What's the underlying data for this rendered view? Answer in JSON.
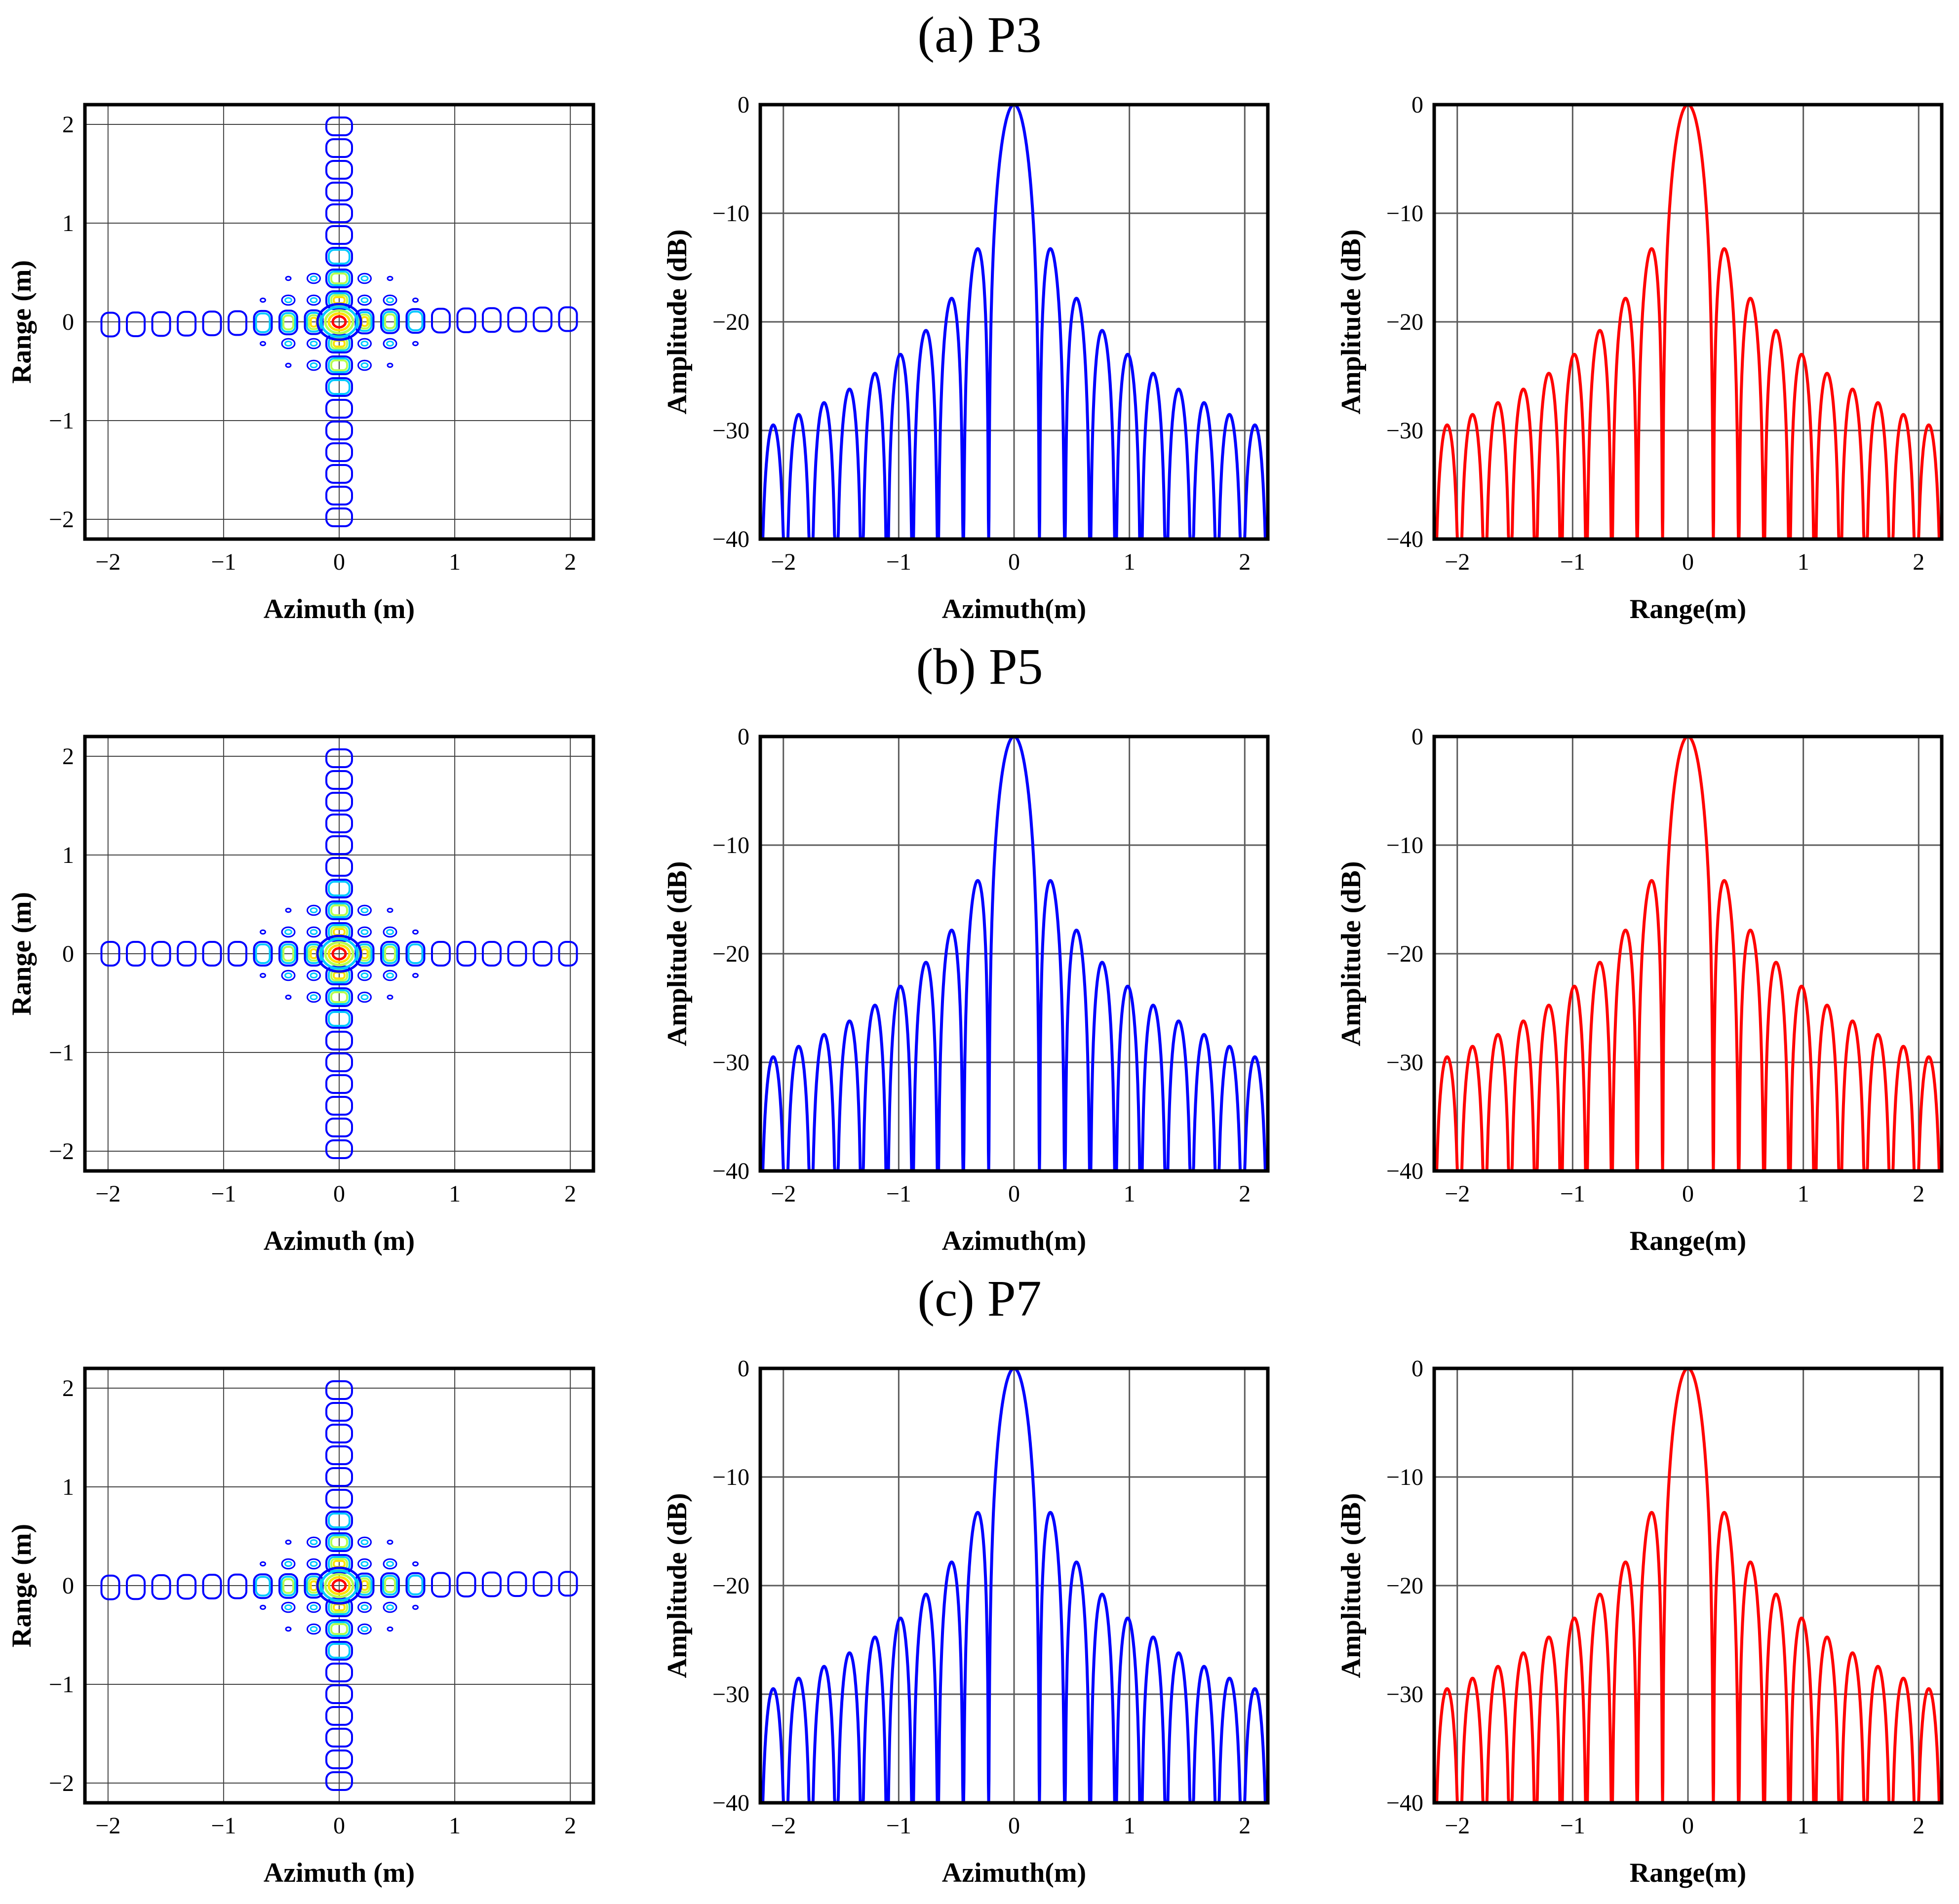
{
  "figure": {
    "rows": [
      {
        "title": "(a) P3",
        "contour": {
          "xlabel": "Azimuth (m)",
          "ylabel": "Range (m)",
          "xticks": [
            "−2",
            "−1",
            "0",
            "1",
            "2"
          ],
          "yticks": [
            "2",
            "1",
            "0",
            "−1",
            "−2"
          ]
        },
        "azimuth_profile": {
          "xlabel": "Azimuth(m)",
          "ylabel": "Amplitude (dB)",
          "xticks": [
            "−2",
            "−1",
            "0",
            "1",
            "2"
          ],
          "yticks": [
            "0",
            "−10",
            "−20",
            "−30",
            "−40"
          ]
        },
        "range_profile": {
          "xlabel": "Range(m)",
          "ylabel": "Amplitude (dB)",
          "xticks": [
            "−2",
            "−1",
            "0",
            "1",
            "2"
          ],
          "yticks": [
            "0",
            "−10",
            "−20",
            "−30",
            "−40"
          ]
        }
      },
      {
        "title": "(b) P5",
        "contour": {
          "xlabel": "Azimuth (m)",
          "ylabel": "Range (m)",
          "xticks": [
            "−2",
            "−1",
            "0",
            "1",
            "2"
          ],
          "yticks": [
            "2",
            "1",
            "0",
            "−1",
            "−2"
          ]
        },
        "azimuth_profile": {
          "xlabel": "Azimuth(m)",
          "ylabel": "Amplitude (dB)",
          "xticks": [
            "−2",
            "−1",
            "0",
            "1",
            "2"
          ],
          "yticks": [
            "0",
            "−10",
            "−20",
            "−30",
            "−40"
          ]
        },
        "range_profile": {
          "xlabel": "Range(m)",
          "ylabel": "Amplitude (dB)",
          "xticks": [
            "−2",
            "−1",
            "0",
            "1",
            "2"
          ],
          "yticks": [
            "0",
            "−10",
            "−20",
            "−30",
            "−40"
          ]
        }
      },
      {
        "title": "(c) P7",
        "contour": {
          "xlabel": "Azimuth (m)",
          "ylabel": "Range (m)",
          "xticks": [
            "−2",
            "−1",
            "0",
            "1",
            "2"
          ],
          "yticks": [
            "2",
            "1",
            "0",
            "−1",
            "−2"
          ]
        },
        "azimuth_profile": {
          "xlabel": "Azimuth(m)",
          "ylabel": "Amplitude (dB)",
          "xticks": [
            "−2",
            "−1",
            "0",
            "1",
            "2"
          ],
          "yticks": [
            "0",
            "−10",
            "−20",
            "−30",
            "−40"
          ]
        },
        "range_profile": {
          "xlabel": "Range(m)",
          "ylabel": "Amplitude (dB)",
          "xticks": [
            "−2",
            "−1",
            "0",
            "1",
            "2"
          ],
          "yticks": [
            "0",
            "−10",
            "−20",
            "−30",
            "−40"
          ]
        }
      }
    ]
  },
  "chart_data": [
    {
      "type": "heatmap",
      "title": "(a) P3",
      "kind": "contour",
      "xlabel": "Azimuth (m)",
      "ylabel": "Range (m)",
      "xlim": [
        -2.2,
        2.2
      ],
      "ylim": [
        -2.2,
        2.2
      ],
      "x_ticks": [
        -2,
        -1,
        0,
        1,
        2
      ],
      "y_ticks": [
        -2,
        -1,
        0,
        1,
        2
      ],
      "peak": [
        0,
        0
      ],
      "grid": true,
      "contour_colors": [
        "#0000ff",
        "#00c8ff",
        "#b4ff50",
        "#ffe000",
        "#ff0000"
      ]
    },
    {
      "type": "line",
      "title": "(a) P3",
      "xlabel": "Azimuth(m)",
      "ylabel": "Amplitude (dB)",
      "xlim": [
        -2.2,
        2.2
      ],
      "ylim": [
        -40,
        0
      ],
      "x_ticks": [
        -2,
        -1,
        0,
        1,
        2
      ],
      "y_ticks": [
        0,
        -10,
        -20,
        -30,
        -40
      ],
      "mainlobe_half_width_m": 0.22,
      "sidelobe_spacing_m": 0.22,
      "sidelobe_peaks_db": [
        -13.3,
        -17.9,
        -21.0,
        -23.3,
        -25.1,
        -26.6,
        -27.8,
        -28.8,
        -29.7
      ],
      "color": "#0000ff",
      "grid": true
    },
    {
      "type": "line",
      "title": "(a) P3",
      "xlabel": "Range(m)",
      "ylabel": "Amplitude (dB)",
      "xlim": [
        -2.2,
        2.2
      ],
      "ylim": [
        -40,
        0
      ],
      "x_ticks": [
        -2,
        -1,
        0,
        1,
        2
      ],
      "y_ticks": [
        0,
        -10,
        -20,
        -30,
        -40
      ],
      "mainlobe_half_width_m": 0.22,
      "sidelobe_spacing_m": 0.22,
      "sidelobe_peaks_db": [
        -13.3,
        -17.9,
        -21.0,
        -23.3,
        -25.1,
        -26.6,
        -27.8,
        -28.8,
        -29.7
      ],
      "color": "#ff0000",
      "grid": true
    },
    {
      "type": "heatmap",
      "title": "(b) P5",
      "kind": "contour",
      "xlabel": "Azimuth (m)",
      "ylabel": "Range (m)",
      "xlim": [
        -2.2,
        2.2
      ],
      "ylim": [
        -2.2,
        2.2
      ],
      "x_ticks": [
        -2,
        -1,
        0,
        1,
        2
      ],
      "y_ticks": [
        -2,
        -1,
        0,
        1,
        2
      ],
      "peak": [
        0,
        0
      ],
      "grid": true,
      "contour_colors": [
        "#0000ff",
        "#00c8ff",
        "#b4ff50",
        "#ffe000",
        "#ff0000"
      ]
    },
    {
      "type": "line",
      "title": "(b) P5",
      "xlabel": "Azimuth(m)",
      "ylabel": "Amplitude (dB)",
      "xlim": [
        -2.2,
        2.2
      ],
      "ylim": [
        -40,
        0
      ],
      "x_ticks": [
        -2,
        -1,
        0,
        1,
        2
      ],
      "y_ticks": [
        0,
        -10,
        -20,
        -30,
        -40
      ],
      "mainlobe_half_width_m": 0.22,
      "sidelobe_spacing_m": 0.22,
      "sidelobe_peaks_db": [
        -13.3,
        -17.9,
        -21.0,
        -23.3,
        -25.1,
        -26.6,
        -27.8,
        -28.8,
        -29.7
      ],
      "color": "#0000ff",
      "grid": true
    },
    {
      "type": "line",
      "title": "(b) P5",
      "xlabel": "Range(m)",
      "ylabel": "Amplitude (dB)",
      "xlim": [
        -2.2,
        2.2
      ],
      "ylim": [
        -40,
        0
      ],
      "x_ticks": [
        -2,
        -1,
        0,
        1,
        2
      ],
      "y_ticks": [
        0,
        -10,
        -20,
        -30,
        -40
      ],
      "mainlobe_half_width_m": 0.22,
      "sidelobe_spacing_m": 0.22,
      "sidelobe_peaks_db": [
        -13.3,
        -17.9,
        -21.0,
        -23.3,
        -25.1,
        -26.6,
        -27.8,
        -28.8,
        -29.7
      ],
      "color": "#ff0000",
      "grid": true
    },
    {
      "type": "heatmap",
      "title": "(c) P7",
      "kind": "contour",
      "xlabel": "Azimuth (m)",
      "ylabel": "Range (m)",
      "xlim": [
        -2.2,
        2.2
      ],
      "ylim": [
        -2.2,
        2.2
      ],
      "x_ticks": [
        -2,
        -1,
        0,
        1,
        2
      ],
      "y_ticks": [
        -2,
        -1,
        0,
        1,
        2
      ],
      "peak": [
        0,
        0
      ],
      "grid": true,
      "contour_colors": [
        "#0000ff",
        "#00c8ff",
        "#b4ff50",
        "#ffe000",
        "#ff0000"
      ]
    },
    {
      "type": "line",
      "title": "(c) P7",
      "xlabel": "Azimuth(m)",
      "ylabel": "Amplitude (dB)",
      "xlim": [
        -2.2,
        2.2
      ],
      "ylim": [
        -40,
        0
      ],
      "x_ticks": [
        -2,
        -1,
        0,
        1,
        2
      ],
      "y_ticks": [
        0,
        -10,
        -20,
        -30,
        -40
      ],
      "mainlobe_half_width_m": 0.22,
      "sidelobe_spacing_m": 0.22,
      "sidelobe_peaks_db": [
        -13.3,
        -17.9,
        -21.0,
        -23.3,
        -25.1,
        -26.6,
        -27.8,
        -28.8,
        -29.7
      ],
      "color": "#0000ff",
      "grid": true
    },
    {
      "type": "line",
      "title": "(c) P7",
      "xlabel": "Range(m)",
      "ylabel": "Amplitude (dB)",
      "xlim": [
        -2.2,
        2.2
      ],
      "ylim": [
        -40,
        0
      ],
      "x_ticks": [
        -2,
        -1,
        0,
        1,
        2
      ],
      "y_ticks": [
        0,
        -10,
        -20,
        -30,
        -40
      ],
      "mainlobe_half_width_m": 0.22,
      "sidelobe_spacing_m": 0.22,
      "sidelobe_peaks_db": [
        -13.3,
        -17.9,
        -21.0,
        -23.3,
        -25.1,
        -26.6,
        -27.8,
        -28.8,
        -29.7
      ],
      "color": "#ff0000",
      "grid": true
    }
  ]
}
